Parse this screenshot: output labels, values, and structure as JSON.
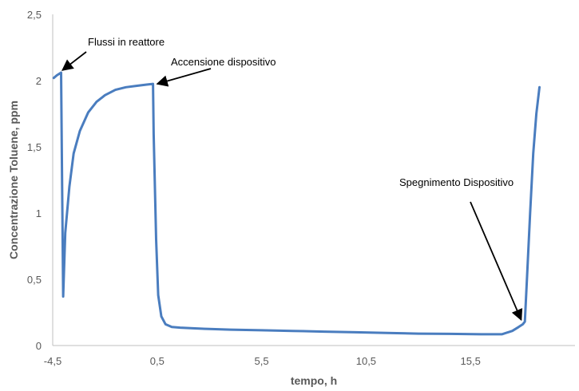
{
  "chart_data": {
    "type": "line",
    "xlabel": "tempo, h",
    "ylabel": "Concentrazione Toluene, ppm",
    "xlim": [
      -4.5,
      20.5
    ],
    "ylim": [
      0,
      2.5
    ],
    "x_ticks": [
      -4.5,
      0.5,
      5.5,
      10.5,
      15.5
    ],
    "x_tick_labels": [
      "-4,5",
      "0,5",
      "5,5",
      "10,5",
      "15,5"
    ],
    "y_ticks": [
      0,
      0.5,
      1,
      1.5,
      2,
      2.5
    ],
    "y_tick_labels": [
      "0",
      "0,5",
      "1",
      "1,5",
      "2",
      "2,5"
    ],
    "grid": false,
    "color": "#4a7dbf",
    "series": [
      {
        "x": [
          -4.45,
          -4.3,
          -4.1,
          -4.05,
          -4.0,
          -3.9,
          -3.7,
          -3.5,
          -3.2,
          -2.8,
          -2.4,
          -2.0,
          -1.5,
          -1.0,
          -0.5,
          0.0,
          0.3,
          0.33,
          0.45,
          0.55,
          0.7,
          0.9,
          1.2,
          1.6,
          2.2,
          3.0,
          4.0,
          5.5,
          7.0,
          8.5,
          10.0,
          11.5,
          13.0,
          14.5,
          16.0,
          17.0,
          17.5,
          17.8,
          18.0,
          18.1,
          18.2,
          18.35,
          18.5,
          18.65,
          18.8
        ],
        "y": [
          2.02,
          2.04,
          2.06,
          1.2,
          0.37,
          0.85,
          1.2,
          1.45,
          1.62,
          1.76,
          1.84,
          1.89,
          1.93,
          1.95,
          1.96,
          1.97,
          1.975,
          1.6,
          0.8,
          0.38,
          0.22,
          0.16,
          0.14,
          0.135,
          0.13,
          0.125,
          0.12,
          0.115,
          0.11,
          0.105,
          0.1,
          0.095,
          0.09,
          0.088,
          0.085,
          0.085,
          0.11,
          0.14,
          0.16,
          0.18,
          0.5,
          1.0,
          1.45,
          1.75,
          1.95
        ]
      }
    ],
    "annotations": [
      {
        "text": "Flussi in reattore",
        "x": -4.15,
        "y": 2.06
      },
      {
        "text": "Accensione dispositivo",
        "x": 0.35,
        "y": 1.975
      },
      {
        "text": "Spegnimento Dispositivo",
        "x": 18.0,
        "y": 0.17
      }
    ]
  }
}
